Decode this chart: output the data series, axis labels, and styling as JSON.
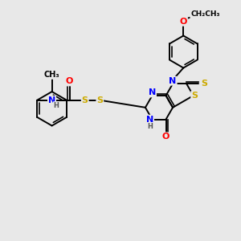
{
  "bg_color": "#e8e8e8",
  "atom_colors": {
    "C": "#000000",
    "N": "#0000ff",
    "O": "#ff0000",
    "S": "#ccaa00",
    "H": "#555555"
  },
  "lw": 1.4,
  "fs": 8.0,
  "fs_small": 7.0
}
